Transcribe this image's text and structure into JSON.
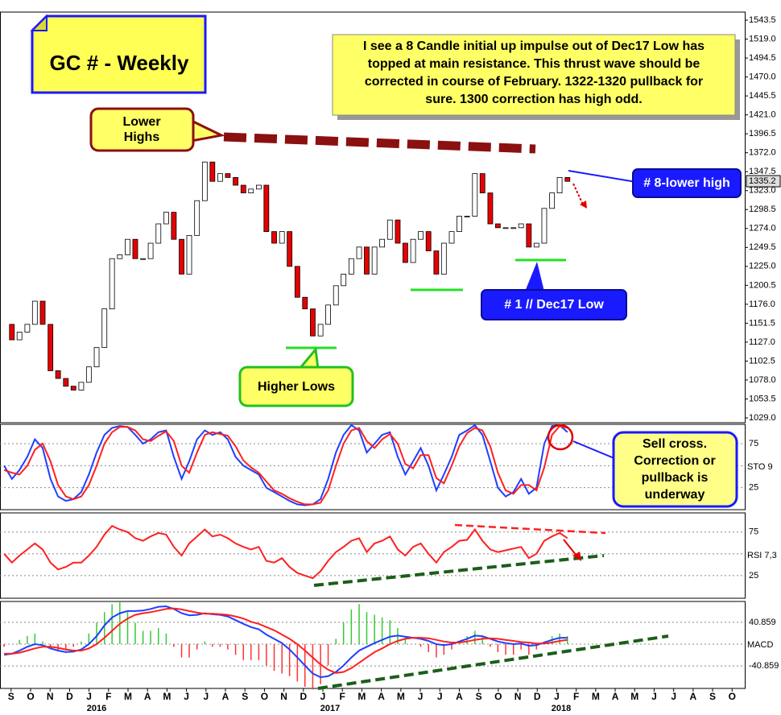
{
  "chart_data": {
    "type": "candlestick",
    "title": "GC # - Weekly",
    "comment": [
      "I see a 8 Candle initial up impulse out of Dec17 Low has",
      "topped at main resistance. This thrust wave should be",
      "corrected in course of February. 1322-1320 pullback for",
      "sure. 1300 correction has high odd."
    ],
    "lower_highs": [
      "Lower",
      "Highs"
    ],
    "higher_lows": "Higher Lows",
    "dec17_low": "# 1 // Dec17 Low",
    "lower_high": "# 8-lower high",
    "sell_cross": [
      "Sell cross.",
      "Correction or",
      "pullback is",
      "underway"
    ],
    "xlim": [
      -0.57,
      37.65
    ],
    "xticks": [
      {
        "value": 0,
        "label": "S"
      },
      {
        "value": 1,
        "label": "O"
      },
      {
        "value": 2,
        "label": "N"
      },
      {
        "value": 3,
        "label": "D"
      },
      {
        "value": 4,
        "label": "J"
      },
      {
        "value": 5,
        "label": "F"
      },
      {
        "value": 6,
        "label": "M"
      },
      {
        "value": 7,
        "label": "A"
      },
      {
        "value": 8,
        "label": "M"
      },
      {
        "value": 9,
        "label": "J"
      },
      {
        "value": 10,
        "label": "J"
      },
      {
        "value": 11,
        "label": "A"
      },
      {
        "value": 12,
        "label": "S"
      },
      {
        "value": 13,
        "label": "O"
      },
      {
        "value": 14,
        "label": "N"
      },
      {
        "value": 15,
        "label": "D"
      },
      {
        "value": 16,
        "label": "J"
      },
      {
        "value": 17,
        "label": "F"
      },
      {
        "value": 18,
        "label": "M"
      },
      {
        "value": 19,
        "label": "A"
      },
      {
        "value": 20,
        "label": "M"
      },
      {
        "value": 21,
        "label": "J"
      },
      {
        "value": 22,
        "label": "J"
      },
      {
        "value": 23,
        "label": "A"
      },
      {
        "value": 24,
        "label": "S"
      },
      {
        "value": 25,
        "label": "O"
      },
      {
        "value": 26,
        "label": "N"
      },
      {
        "value": 27,
        "label": "D"
      },
      {
        "value": 28,
        "label": "J"
      },
      {
        "value": 29,
        "label": "F"
      },
      {
        "value": 30,
        "label": "M"
      },
      {
        "value": 31,
        "label": "A"
      },
      {
        "value": 32,
        "label": "M"
      },
      {
        "value": 33,
        "label": "J"
      },
      {
        "value": 34,
        "label": "J"
      },
      {
        "value": 35,
        "label": "A"
      },
      {
        "value": 36,
        "label": "S"
      },
      {
        "value": 37,
        "label": "O"
      }
    ],
    "year_ticks": [
      {
        "value": 4.39,
        "label": "2016"
      },
      {
        "value": 16.37,
        "label": "2017"
      },
      {
        "value": 28.23,
        "label": "2018"
      }
    ],
    "x": [
      -0.36,
      0.04,
      0.43,
      0.83,
      1.22,
      1.62,
      2.02,
      2.41,
      2.81,
      3.2,
      3.6,
      3.99,
      4.39,
      4.79,
      5.18,
      5.58,
      5.98,
      6.37,
      6.77,
      7.16,
      7.56,
      7.96,
      8.35,
      8.75,
      9.14,
      9.54,
      9.94,
      10.33,
      10.73,
      11.12,
      11.52,
      11.92,
      12.31,
      12.71,
      13.1,
      13.5,
      13.9,
      14.29,
      14.69,
      15.08,
      15.48,
      15.88,
      16.27,
      16.67,
      17.06,
      17.46,
      17.86,
      18.25,
      18.65,
      19.04,
      19.44,
      19.84,
      20.23,
      20.63,
      21.02,
      21.42,
      21.82,
      22.21,
      22.61,
      23.0,
      23.4,
      23.8,
      24.19,
      24.59,
      24.98,
      25.38,
      25.78,
      26.17,
      26.57,
      26.96,
      27.36,
      27.76,
      28.15,
      28.55
    ],
    "panels": [
      {
        "type": "candlestick",
        "values": [
          1150,
          1130,
          1140,
          1150,
          1180,
          1150,
          1090,
          1080,
          1070,
          1065,
          1075,
          1095,
          1120,
          1170,
          1235,
          1240,
          1260,
          1235,
          1235,
          1255,
          1280,
          1295,
          1260,
          1215,
          1265,
          1310,
          1360,
          1335,
          1345,
          1340,
          1330,
          1320,
          1325,
          1330,
          1270,
          1255,
          1270,
          1225,
          1185,
          1170,
          1135,
          1150,
          1175,
          1200,
          1215,
          1235,
          1250,
          1215,
          1250,
          1260,
          1285,
          1255,
          1230,
          1260,
          1270,
          1245,
          1215,
          1255,
          1270,
          1290,
          1290,
          1345,
          1320,
          1280,
          1275,
          1275,
          1275,
          1280,
          1250,
          1255,
          1300,
          1320,
          1340,
          1335
        ],
        "up_color": "#ffffff",
        "down_color": "#e60000",
        "ylim": [
          1022.75,
          1553.95
        ],
        "yticks": [
          1543.5,
          {
            "value": 1519,
            "label": "1519.0"
          },
          1494.5,
          {
            "value": 1470,
            "label": "1470.0"
          },
          1445.5,
          {
            "value": 1421,
            "label": "1421.0"
          },
          1396.5,
          {
            "value": 1372,
            "label": "1372.0"
          },
          1347.5,
          {
            "value": 1323,
            "label": "1323.0"
          },
          1298.5,
          {
            "value": 1274,
            "label": "1274.0"
          },
          1249.5,
          {
            "value": 1225,
            "label": "1225.0"
          },
          1200.5,
          {
            "value": 1176,
            "label": "1176.0"
          },
          1151.5,
          {
            "value": 1127,
            "label": "1127.0"
          },
          1102.5,
          {
            "value": 1078,
            "label": "1078.0"
          },
          1053.5,
          {
            "value": 1029,
            "label": "1029.0"
          }
        ],
        "last_price": 1335.2
      },
      {
        "type": "line",
        "label": "STO  9",
        "ylim": [
          0,
          97
        ],
        "yticks": [
          75,
          {
            "value": 50,
            "label": null
          },
          25
        ],
        "series": [
          {
            "color": "#1f3fff",
            "values": [
              50,
              35,
              45,
              60,
              80,
              70,
              35,
              15,
              10,
              12,
              20,
              40,
              65,
              85,
              93,
              95,
              94,
              85,
              75,
              80,
              88,
              90,
              60,
              35,
              55,
              80,
              90,
              85,
              88,
              80,
              60,
              50,
              45,
              40,
              25,
              20,
              15,
              10,
              6,
              5,
              6,
              12,
              35,
              65,
              85,
              96,
              90,
              65,
              75,
              85,
              88,
              60,
              40,
              55,
              70,
              50,
              22,
              40,
              60,
              85,
              90,
              96,
              85,
              55,
              25,
              15,
              20,
              35,
              18,
              25,
              75,
              95,
              96,
              88
            ]
          },
          {
            "color": "#ff2020",
            "values": [
              45,
              42,
              40,
              50,
              68,
              75,
              55,
              28,
              15,
              12,
              15,
              28,
              50,
              75,
              88,
              94,
              94,
              90,
              80,
              78,
              84,
              89,
              78,
              50,
              42,
              65,
              85,
              88,
              86,
              84,
              72,
              56,
              48,
              42,
              32,
              22,
              18,
              13,
              9,
              6,
              6,
              8,
              22,
              50,
              75,
              90,
              93,
              78,
              70,
              80,
              86,
              75,
              52,
              47,
              62,
              62,
              36,
              30,
              50,
              72,
              87,
              93,
              90,
              72,
              42,
              22,
              18,
              28,
              28,
              22,
              48,
              85,
              95,
              93
            ]
          }
        ]
      },
      {
        "type": "line",
        "label": "RSI  7,3",
        "ylim": [
          -1,
          97
        ],
        "yticks": [
          75,
          {
            "value": 50,
            "label": null
          },
          25
        ],
        "series": [
          {
            "color": "#ff2020",
            "values": [
              50,
              40,
              48,
              55,
              62,
              55,
              40,
              32,
              35,
              40,
              40,
              48,
              58,
              72,
              82,
              78,
              75,
              68,
              65,
              70,
              74,
              72,
              58,
              48,
              62,
              70,
              78,
              70,
              72,
              68,
              62,
              58,
              55,
              58,
              42,
              40,
              45,
              35,
              28,
              25,
              22,
              30,
              42,
              52,
              58,
              65,
              68,
              52,
              62,
              65,
              70,
              55,
              48,
              58,
              62,
              50,
              40,
              52,
              58,
              65,
              66,
              78,
              65,
              55,
              52,
              54,
              56,
              58,
              45,
              50,
              65,
              70,
              74,
              68
            ]
          }
        ]
      },
      {
        "type": "macd",
        "label": "MACD",
        "ylim": [
          -83,
          80
        ],
        "yticks": [
          40.859,
          {
            "value": 0,
            "label": null
          },
          -40.859
        ],
        "histogram": {
          "pos_color": "#33cc33",
          "neg_color": "#ff3333",
          "values": [
            -5,
            0,
            8,
            15,
            20,
            5,
            -8,
            -12,
            -12,
            -5,
            5,
            20,
            40,
            60,
            75,
            80,
            60,
            40,
            25,
            25,
            30,
            20,
            -5,
            -25,
            -25,
            -10,
            5,
            -5,
            -5,
            -10,
            -20,
            -30,
            -30,
            -30,
            -40,
            -50,
            -55,
            -60,
            -70,
            -80,
            -85,
            -75,
            -40,
            10,
            40,
            65,
            75,
            60,
            55,
            50,
            45,
            30,
            15,
            0,
            -5,
            -15,
            -25,
            -20,
            -10,
            5,
            15,
            25,
            15,
            -5,
            -15,
            -20,
            -20,
            -10,
            -20,
            -10,
            5,
            15,
            20,
            15
          ]
        },
        "series": [
          {
            "color": "#1f3fff",
            "values": [
              -20,
              -18,
              -12,
              -5,
              0,
              -2,
              -8,
              -12,
              -15,
              -14,
              -10,
              0,
              15,
              35,
              50,
              58,
              62,
              62,
              63,
              66,
              70,
              71,
              66,
              58,
              54,
              55,
              58,
              56,
              55,
              52,
              45,
              38,
              32,
              28,
              18,
              10,
              2,
              -10,
              -25,
              -40,
              -55,
              -62,
              -60,
              -52,
              -40,
              -25,
              -12,
              -5,
              2,
              8,
              14,
              16,
              14,
              12,
              10,
              6,
              0,
              -2,
              0,
              5,
              10,
              16,
              15,
              10,
              5,
              2,
              0,
              1,
              -3,
              -2,
              3,
              8,
              12,
              12
            ]
          },
          {
            "color": "#ff2020",
            "values": [
              -18,
              -18,
              -16,
              -12,
              -8,
              -5,
              -5,
              -7,
              -10,
              -12,
              -12,
              -8,
              0,
              12,
              25,
              38,
              48,
              55,
              58,
              60,
              63,
              66,
              67,
              65,
              62,
              59,
              57,
              57,
              56,
              55,
              52,
              48,
              42,
              38,
              32,
              26,
              18,
              10,
              0,
              -12,
              -25,
              -38,
              -48,
              -54,
              -52,
              -45,
              -35,
              -25,
              -15,
              -8,
              0,
              6,
              10,
              12,
              12,
              11,
              8,
              5,
              3,
              3,
              5,
              8,
              10,
              11,
              10,
              8,
              6,
              4,
              3,
              1,
              1,
              3,
              6,
              8
            ]
          }
        ]
      }
    ]
  }
}
